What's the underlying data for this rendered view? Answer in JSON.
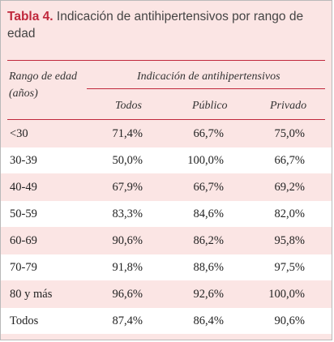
{
  "caption": {
    "label": "Tabla 4.",
    "title": "Indicación de antihipertensivos por rango de edad"
  },
  "header": {
    "age_col_line1": "Rango de edad",
    "age_col_line2": "(años)",
    "group": "Indicación de antihipertensivos",
    "cols": [
      "Todos",
      "Público",
      "Privado"
    ]
  },
  "rows": [
    {
      "age": "<30",
      "todos": "71,4%",
      "publico": "66,7%",
      "privado": "75,0%"
    },
    {
      "age": "30-39",
      "todos": "50,0%",
      "publico": "100,0%",
      "privado": "66,7%"
    },
    {
      "age": "40-49",
      "todos": "67,9%",
      "publico": "66,7%",
      "privado": "69,2%"
    },
    {
      "age": "50-59",
      "todos": "83,3%",
      "publico": "84,6%",
      "privado": "82,0%"
    },
    {
      "age": "60-69",
      "todos": "90,6%",
      "publico": "86,2%",
      "privado": "95,8%"
    },
    {
      "age": "70-79",
      "todos": "91,8%",
      "publico": "88,6%",
      "privado": "97,5%"
    },
    {
      "age": "80 y más",
      "todos": "96,6%",
      "publico": "92,6%",
      "privado": "100,0%"
    },
    {
      "age": "Todos",
      "todos": "87,4%",
      "publico": "86,4%",
      "privado": "90,6%"
    }
  ],
  "colors": {
    "accent": "#c0283c",
    "background": "#fbe5e4"
  }
}
